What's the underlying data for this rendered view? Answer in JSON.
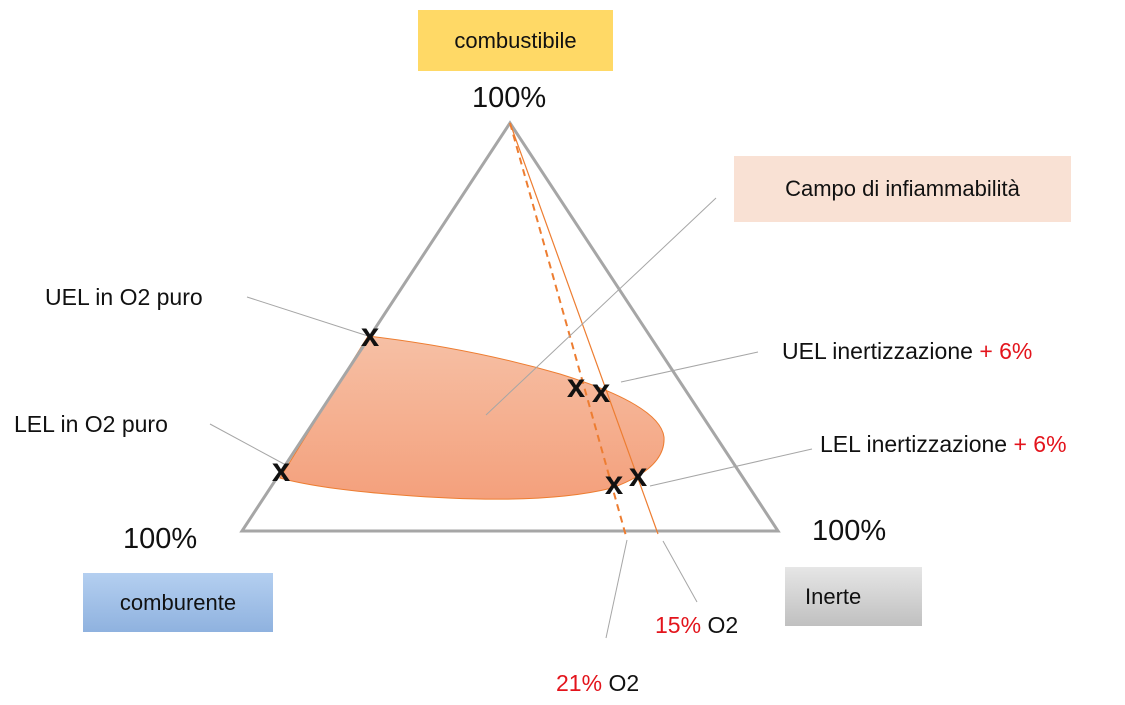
{
  "vertices": {
    "combustibile": "combustibile",
    "comburente": "comburente",
    "inerte": "Inerte",
    "pct_top": "100%",
    "pct_left": "100%",
    "pct_right": "100%"
  },
  "region": {
    "label": "Campo di infiammabilità",
    "fill": "#f4a582",
    "stroke": "#e8743b"
  },
  "annotations": {
    "uel_o2": "UEL in O2 puro",
    "lel_o2": "LEL in O2 puro",
    "uel_inert": {
      "text": "UEL inertizzazione",
      "delta": "+ 6%"
    },
    "lel_inert": {
      "text": "LEL inertizzazione",
      "delta": "+ 6%"
    },
    "o2_21": {
      "pct": "21%",
      "unit": "O2"
    },
    "o2_15": {
      "pct": "15%",
      "unit": "O2"
    }
  },
  "markers": [
    "x",
    "x",
    "x",
    "x",
    "x",
    "x"
  ],
  "colors": {
    "triangle": "#a6a6a6",
    "leader": "#a6a6a6",
    "line": "#ed7d31",
    "accent_red": "#e3141c",
    "marker": "#111111"
  }
}
